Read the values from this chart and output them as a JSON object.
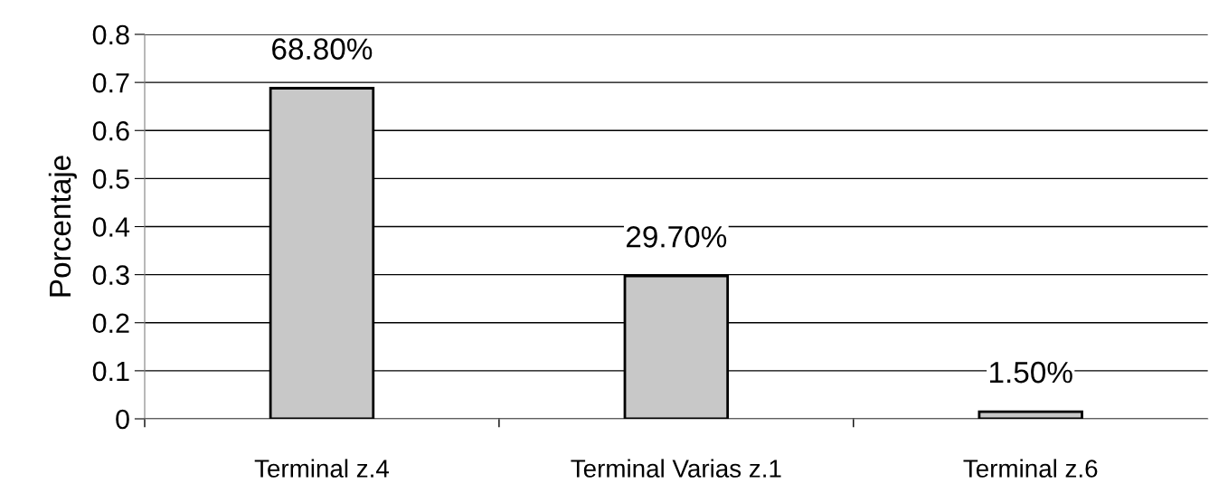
{
  "chart_data": {
    "type": "bar",
    "ylabel": "Porcentaje",
    "categories": [
      "Terminal z.4",
      "Terminal Varias z.1",
      "Terminal z.6"
    ],
    "values": [
      0.688,
      0.297,
      0.015
    ],
    "value_labels": [
      "68.80%",
      "29.70%",
      "1.50%"
    ],
    "color": "#c8c8c8",
    "ylim": [
      0,
      0.8
    ],
    "yticks": [
      0,
      0.1,
      0.2,
      0.3,
      0.4,
      0.5,
      0.6,
      0.7,
      0.8
    ],
    "grid": "y",
    "legend": false
  }
}
